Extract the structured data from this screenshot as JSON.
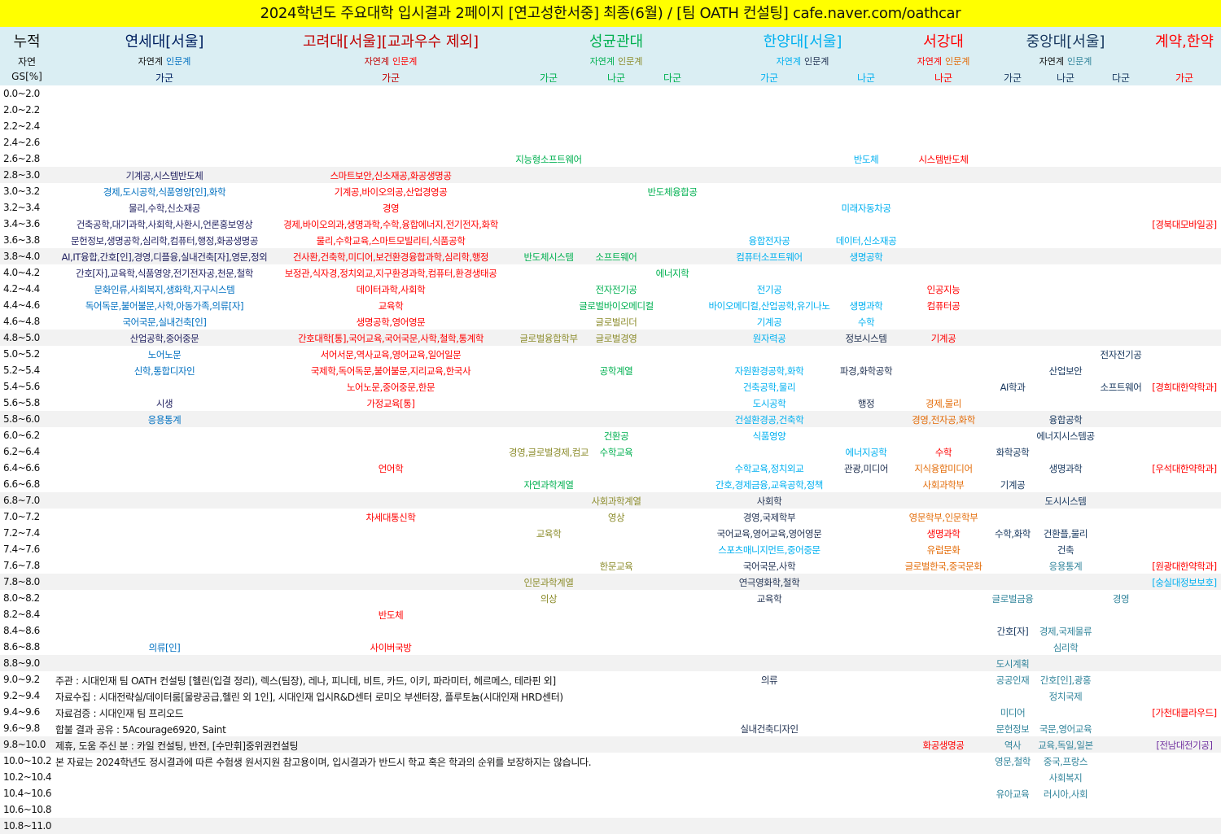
{
  "title": "2024학년도 주요대학 입시결과 2페이지 [연고성한서중] 최종(6월) / [팀 OATH 컨설팅] cafe.naver.com/oathcar",
  "header": {
    "left": {
      "label1": "누적",
      "label2": "자연",
      "label3": "GS[%]"
    },
    "universities": [
      {
        "name": "연세대[서울]",
        "color": "#002060",
        "track_nat": "자연계",
        "track_hum": "인문계",
        "nat_color": "#111111",
        "hum_color": "#0070c0",
        "center": "yg",
        "groups": [
          [
            "가군",
            "yg"
          ]
        ]
      },
      {
        "name": "고려대[서울][교과우수 제외]",
        "color": "#c00000",
        "track_nat": "자연계",
        "track_hum": "인문계",
        "nat_color": "#c00000",
        "hum_color": "#ff0000",
        "center": "kr",
        "groups": [
          [
            "가군",
            "kr"
          ]
        ]
      },
      {
        "name": "성균관대",
        "color": "#00b050",
        "track_nat": "자연계",
        "track_hum": "인문계",
        "nat_color": "#00b050",
        "hum_color": "#8b8b2a",
        "center": "sk_na",
        "groups": [
          [
            "가군",
            "sk_ga"
          ],
          [
            "나군",
            "sk_na"
          ],
          [
            "다군",
            "sk_da"
          ]
        ]
      },
      {
        "name": "한양대[서울]",
        "color": "#00b0f0",
        "track_nat": "자연계",
        "track_hum": "인문계",
        "nat_color": "#00b0f0",
        "hum_color": "#1f3050",
        "center": "hy_mid",
        "groups": [
          [
            "가군",
            "hy_ga"
          ],
          [
            "나군",
            "hy_na"
          ]
        ]
      },
      {
        "name": "서강대",
        "color": "#ff0000",
        "track_nat": "자연계",
        "track_hum": "인문계",
        "nat_color": "#ff0000",
        "hum_color": "#e36c09",
        "center": "sg_na",
        "groups": [
          [
            "나군",
            "sg_na"
          ]
        ]
      },
      {
        "name": "중앙대[서울]",
        "color": "#17375e",
        "track_nat": "자연계",
        "track_hum": "인문계",
        "nat_color": "#111111",
        "hum_color": "#31849b",
        "center": "ca_na",
        "groups": [
          [
            "가군",
            "ca_ga"
          ],
          [
            "나군",
            "ca_na"
          ],
          [
            "다군",
            "ca_da"
          ]
        ]
      },
      {
        "name": "계약,한약",
        "color": "#ff0000",
        "track_nat": "",
        "track_hum": "",
        "nat_color": "#ff0000",
        "hum_color": "#ff0000",
        "center": "kh_ga",
        "groups": [
          [
            "가군",
            "kh_ga"
          ]
        ]
      }
    ]
  },
  "colors": {
    "yb": "#0070c0",
    "yn": "#1f1f5f",
    "r": "#ff0000",
    "g": "#00b050",
    "o": "#8b8b2a",
    "c": "#00b0f0",
    "d": "#1f3050",
    "or": "#e36c09",
    "n": "#17375e",
    "t": "#31849b",
    "p": "#7030a0",
    "k": "#111111"
  },
  "rows": [
    {
      "gs": "0.0~2.0",
      "e": []
    },
    {
      "gs": "2.0~2.2",
      "e": []
    },
    {
      "gs": "2.2~2.4",
      "e": []
    },
    {
      "gs": "2.4~2.6",
      "e": []
    },
    {
      "gs": "2.6~2.8",
      "e": [
        [
          "sk_ga",
          "지능형소프트웨어",
          "g"
        ],
        [
          "hy_na",
          "반도체",
          "c"
        ],
        [
          "sg_na",
          "시스템반도체",
          "r"
        ]
      ]
    },
    {
      "gs": "2.8~3.0",
      "e": [
        [
          "yg",
          "기계공,시스템반도체",
          "yn"
        ],
        [
          "kr",
          "스마트보안,신소재공,화공생명공",
          "r"
        ]
      ]
    },
    {
      "gs": "3.0~3.2",
      "e": [
        [
          "yg",
          "경제,도시공학,식품영양[인],화학",
          "yb"
        ],
        [
          "kr",
          "기계공,바이오의공,산업경영공",
          "r"
        ],
        [
          "sk_da",
          "반도체융합공",
          "g"
        ]
      ]
    },
    {
      "gs": "3.2~3.4",
      "e": [
        [
          "yg",
          "물리,수학,신소재공",
          "yn"
        ],
        [
          "kr",
          "경영",
          "r"
        ],
        [
          "hy_na",
          "미래자동차공",
          "c"
        ]
      ]
    },
    {
      "gs": "3.4~3.6",
      "e": [
        [
          "yg",
          "건축공학,대기과학,사회학,사환시,언론홍보영상",
          "yn"
        ],
        [
          "kr",
          "경제,바이오의과,생명과학,수학,융합에너지,전기전자,화학",
          "r"
        ],
        [
          "kh_ga",
          "[경북대모바일공]",
          "r"
        ]
      ]
    },
    {
      "gs": "3.6~3.8",
      "e": [
        [
          "yg",
          "문헌정보,생명공학,심리학,컴퓨터,행정,화공생명공",
          "yn"
        ],
        [
          "kr",
          "물리,수학교육,스마트모빌리티,식품공학",
          "r"
        ],
        [
          "hy_ga",
          "융합전자공",
          "c"
        ],
        [
          "hy_na",
          "데이터,신소재공",
          "c"
        ]
      ]
    },
    {
      "gs": "3.8~4.0",
      "e": [
        [
          "yg",
          "AI,IT융합,간호[인],경영,디플융,실내건축[자],영문,정외",
          "yn"
        ],
        [
          "kr",
          "건사환,건축학,미디어,보건환경융합과학,심리학,행정",
          "r"
        ],
        [
          "sk_ga",
          "반도체시스템",
          "g"
        ],
        [
          "sk_na",
          "소프트웨어",
          "g"
        ],
        [
          "hy_ga",
          "컴퓨터소프트웨어",
          "c"
        ],
        [
          "hy_na",
          "생명공학",
          "c"
        ]
      ]
    },
    {
      "gs": "4.0~4.2",
      "e": [
        [
          "yg",
          "간호[자],교육학,식품영양,전기전자공,천문,철학",
          "yn"
        ],
        [
          "kr",
          "보정관,식자경,정치외교,지구환경과학,컴퓨터,환경생태공",
          "r"
        ],
        [
          "sk_da",
          "에너지학",
          "g"
        ]
      ]
    },
    {
      "gs": "4.2~4.4",
      "e": [
        [
          "yg",
          "문화인류,사회복지,생화학,지구시스템",
          "yb"
        ],
        [
          "kr",
          "데이터과학,사회학",
          "r"
        ],
        [
          "sk_na",
          "전자전기공",
          "g"
        ],
        [
          "hy_ga",
          "전기공",
          "c"
        ],
        [
          "sg_na",
          "인공지능",
          "r"
        ]
      ]
    },
    {
      "gs": "4.4~4.6",
      "e": [
        [
          "yg",
          "독어독문,불어불문,사학,아동가족,의류[자]",
          "yb"
        ],
        [
          "kr",
          "교육학",
          "r"
        ],
        [
          "sk_na",
          "글로벌바이오메디컬",
          "g"
        ],
        [
          "hy_ga",
          "바이오메디컬,산업공학,유기나노",
          "c"
        ],
        [
          "hy_na",
          "생명과학",
          "c"
        ],
        [
          "sg_na",
          "컴퓨터공",
          "r"
        ]
      ]
    },
    {
      "gs": "4.6~4.8",
      "e": [
        [
          "yg",
          "국어국문,실내건축[인]",
          "yb"
        ],
        [
          "kr",
          "생명공학,영어영문",
          "r"
        ],
        [
          "sk_na",
          "글로벌리더",
          "o"
        ],
        [
          "hy_ga",
          "기계공",
          "c"
        ],
        [
          "hy_na",
          "수학",
          "c"
        ]
      ]
    },
    {
      "gs": "4.8~5.0",
      "e": [
        [
          "yg",
          "산업공학,중어중문",
          "yn"
        ],
        [
          "kr",
          "간호대학[통],국어교육,국어국문,사학,철학,통계학",
          "r"
        ],
        [
          "sk_ga",
          "글로벌융합학부",
          "o"
        ],
        [
          "sk_na",
          "글로벌경영",
          "o"
        ],
        [
          "hy_ga",
          "원자력공",
          "c"
        ],
        [
          "hy_na",
          "정보시스템",
          "d"
        ],
        [
          "sg_na",
          "기계공",
          "r"
        ]
      ]
    },
    {
      "gs": "5.0~5.2",
      "e": [
        [
          "yg",
          "노어노문",
          "yb"
        ],
        [
          "kr",
          "서어서문,역사교육,영어교육,일어일문",
          "r"
        ],
        [
          "ca_da",
          "전자전기공",
          "n"
        ]
      ]
    },
    {
      "gs": "5.2~5.4",
      "e": [
        [
          "yg",
          "신학,통합디자인",
          "yb"
        ],
        [
          "kr",
          "국제학,독어독문,불어불문,지리교육,한국사",
          "r"
        ],
        [
          "sk_na",
          "공학계열",
          "g"
        ],
        [
          "hy_ga",
          "자원환경공학,화학",
          "c"
        ],
        [
          "hy_na",
          "파경,화학공학",
          "d"
        ],
        [
          "ca_na",
          "산업보안",
          "n"
        ]
      ]
    },
    {
      "gs": "5.4~5.6",
      "e": [
        [
          "kr",
          "노어노문,중어중문,한문",
          "r"
        ],
        [
          "hy_ga",
          "건축공학,물리",
          "c"
        ],
        [
          "ca_ga",
          "AI학과",
          "n"
        ],
        [
          "ca_da",
          "소프트웨어",
          "n"
        ],
        [
          "kh_ga",
          "[경희대한약학과]",
          "r"
        ]
      ]
    },
    {
      "gs": "5.6~5.8",
      "e": [
        [
          "yg",
          "시생",
          "yn"
        ],
        [
          "kr",
          "가정교육[통]",
          "r"
        ],
        [
          "hy_ga",
          "도시공학",
          "c"
        ],
        [
          "hy_na",
          "행정",
          "d"
        ],
        [
          "sg_na",
          "경제,물리",
          "or"
        ]
      ]
    },
    {
      "gs": "5.8~6.0",
      "e": [
        [
          "yg",
          "응용통계",
          "yb"
        ],
        [
          "hy_ga",
          "건설환경공,건축학",
          "c"
        ],
        [
          "sg_na",
          "경영,전자공,화학",
          "or"
        ],
        [
          "ca_na",
          "융합공학",
          "n"
        ]
      ]
    },
    {
      "gs": "6.0~6.2",
      "e": [
        [
          "sk_na",
          "건환공",
          "g"
        ],
        [
          "hy_ga",
          "식품영양",
          "c"
        ],
        [
          "ca_na",
          "에너지시스템공",
          "n"
        ]
      ]
    },
    {
      "gs": "6.2~6.4",
      "e": [
        [
          "sk_ga",
          "경영,글로벌경제,컴교",
          "o"
        ],
        [
          "sk_na",
          "수학교육",
          "g"
        ],
        [
          "hy_na",
          "에너지공학",
          "c"
        ],
        [
          "sg_na",
          "수학",
          "r"
        ],
        [
          "ca_ga",
          "화학공학",
          "n"
        ]
      ]
    },
    {
      "gs": "6.4~6.6",
      "e": [
        [
          "kr",
          "언어학",
          "r"
        ],
        [
          "hy_ga",
          "수학교육,정치외교",
          "c"
        ],
        [
          "hy_na",
          "관광,미디어",
          "d"
        ],
        [
          "sg_na",
          "지식융합미디어",
          "or"
        ],
        [
          "ca_na",
          "생명과학",
          "n"
        ],
        [
          "kh_ga",
          "[우석대한약학과]",
          "r"
        ]
      ]
    },
    {
      "gs": "6.6~6.8",
      "e": [
        [
          "sk_ga",
          "자연과학계열",
          "g"
        ],
        [
          "hy_ga",
          "간호,경제금융,교육공학,정책",
          "c"
        ],
        [
          "sg_na",
          "사회과학부",
          "or"
        ],
        [
          "ca_ga",
          "기계공",
          "n"
        ]
      ]
    },
    {
      "gs": "6.8~7.0",
      "e": [
        [
          "sk_na",
          "사회과학계열",
          "o"
        ],
        [
          "hy_ga",
          "사회학",
          "d"
        ],
        [
          "ca_na",
          "도시시스템",
          "n"
        ]
      ]
    },
    {
      "gs": "7.0~7.2",
      "e": [
        [
          "kr",
          "차세대통신학",
          "r"
        ],
        [
          "sk_na",
          "영상",
          "o"
        ],
        [
          "hy_ga",
          "경영,국제학부",
          "d"
        ],
        [
          "sg_na",
          "영문학부,인문학부",
          "or"
        ]
      ]
    },
    {
      "gs": "7.2~7.4",
      "e": [
        [
          "sk_ga",
          "교육학",
          "o"
        ],
        [
          "hy_ga",
          "국어교육,영어교육,영어영문",
          "d"
        ],
        [
          "sg_na",
          "생명과학",
          "r"
        ],
        [
          "ca_ga",
          "수학,화학",
          "n"
        ],
        [
          "ca_na",
          "건환플,물리",
          "n"
        ]
      ]
    },
    {
      "gs": "7.4~7.6",
      "e": [
        [
          "hy_ga",
          "스포츠매니지먼트,중어중문",
          "c"
        ],
        [
          "sg_na",
          "유럽문화",
          "or"
        ],
        [
          "ca_na",
          "건축",
          "n"
        ]
      ]
    },
    {
      "gs": "7.6~7.8",
      "e": [
        [
          "sk_na",
          "한문교육",
          "o"
        ],
        [
          "hy_ga",
          "국어국문,사학",
          "d"
        ],
        [
          "sg_na",
          "글로벌한국,중국문화",
          "or"
        ],
        [
          "ca_na",
          "응용통계",
          "t"
        ],
        [
          "kh_ga",
          "[원광대한약학과]",
          "r"
        ]
      ]
    },
    {
      "gs": "7.8~8.0",
      "e": [
        [
          "sk_ga",
          "인문과학계열",
          "o"
        ],
        [
          "hy_ga",
          "연극영화학,철학",
          "d"
        ],
        [
          "kh_ga",
          "[숭실대정보보호]",
          "c"
        ]
      ]
    },
    {
      "gs": "8.0~8.2",
      "e": [
        [
          "sk_ga",
          "의상",
          "o"
        ],
        [
          "hy_ga",
          "교육학",
          "d"
        ],
        [
          "ca_ga",
          "글로벌금융",
          "t"
        ],
        [
          "ca_da",
          "경영",
          "t"
        ]
      ]
    },
    {
      "gs": "8.2~8.4",
      "e": [
        [
          "kr",
          "반도체",
          "r"
        ]
      ]
    },
    {
      "gs": "8.4~8.6",
      "e": [
        [
          "ca_ga",
          "간호[자]",
          "n"
        ],
        [
          "ca_na",
          "경제,국제물류",
          "t"
        ]
      ]
    },
    {
      "gs": "8.6~8.8",
      "e": [
        [
          "yg",
          "의류[인]",
          "yb"
        ],
        [
          "kr",
          "사이버국방",
          "r"
        ],
        [
          "ca_na",
          "심리학",
          "t"
        ]
      ]
    },
    {
      "gs": "8.8~9.0",
      "e": [
        [
          "ca_ga",
          "도시계획",
          "t"
        ]
      ]
    },
    {
      "gs": "9.0~9.2",
      "note": "주관 : 시대인재 팀 OATH 컨설팅 [헬린(입결 정리), 렉스(팀장), 레나, 피니테, 비트, 카드, 이키, 파라미터, 헤르메스, 테라핀 외]",
      "e": [
        [
          "hy_ga",
          "의류",
          "d"
        ],
        [
          "ca_ga",
          "공공인재",
          "t"
        ],
        [
          "ca_na",
          "간호[인],광홍",
          "t"
        ]
      ]
    },
    {
      "gs": "9.2~9.4",
      "note": "자료수집 : 시대전략실/데이터룸[물량공급,헬린 외 1인], 시대인재 입시R&D센터 로미오 부센터장, 플루토늄(시대인재 HRD센터)",
      "e": [
        [
          "ca_na",
          "정치국제",
          "t"
        ]
      ]
    },
    {
      "gs": "9.4~9.6",
      "note": "자료검증 : 시대인재 팀 프리오드",
      "e": [
        [
          "ca_ga",
          "미디어",
          "t"
        ],
        [
          "kh_ga",
          "[가천대클라우드]",
          "r"
        ]
      ]
    },
    {
      "gs": "9.6~9.8",
      "note": "합불 결과 공유 : 5Acourage6920, Saint",
      "e": [
        [
          "hy_ga",
          "실내건축디자인",
          "d"
        ],
        [
          "ca_ga",
          "문헌정보",
          "t"
        ],
        [
          "ca_na",
          "국문,영어교육",
          "t"
        ]
      ]
    },
    {
      "gs": "9.8~10.0",
      "note": "제휴, 도움 주신 분 : 카일 컨설팅, 반전, [수만휘]중위권컨설팅",
      "e": [
        [
          "sg_na",
          "화공생명공",
          "r"
        ],
        [
          "ca_ga",
          "역사",
          "t"
        ],
        [
          "ca_na",
          "교육,독일,일본",
          "t"
        ],
        [
          "kh_ga",
          "[전남대전기공]",
          "p"
        ]
      ]
    },
    {
      "gs": "10.0~10.2",
      "note": "본 자료는 2024학년도 정시결과에 따른 수험생 원서지원 참고용이며, 입시결과가 반드시 학교 혹은 학과의 순위를 보장하지는 않습니다.",
      "e": [
        [
          "ca_ga",
          "영문,철학",
          "t"
        ],
        [
          "ca_na",
          "중국,프랑스",
          "t"
        ]
      ]
    },
    {
      "gs": "10.2~10.4",
      "e": [
        [
          "ca_na",
          "사회복지",
          "t"
        ]
      ]
    },
    {
      "gs": "10.4~10.6",
      "e": [
        [
          "ca_ga",
          "유아교육",
          "t"
        ],
        [
          "ca_na",
          "러시아,사회",
          "t"
        ]
      ]
    },
    {
      "gs": "10.6~10.8",
      "e": []
    },
    {
      "gs": "10.8~11.0",
      "e": []
    }
  ]
}
